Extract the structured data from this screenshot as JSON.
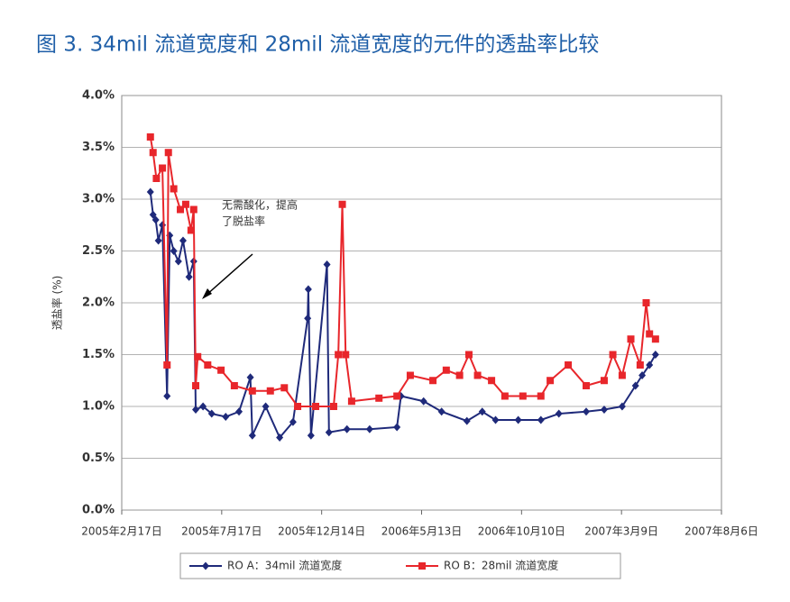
{
  "chart_data": {
    "type": "line",
    "title": "图 3. 34mil 流道宽度和 28mil 流道宽度的元件的透盐率比较",
    "ylabel": "透盐率 (%)",
    "annotation": [
      "无需酸化，提高",
      "了脱盐率"
    ],
    "xlim": [
      "2005-02-17",
      "2007-08-06"
    ],
    "xticks": [
      {
        "value": "2005-02-17",
        "label": "2005年2月17日"
      },
      {
        "value": "2005-07-17",
        "label": "2005年7月17日"
      },
      {
        "value": "2005-12-14",
        "label": "2005年12月14日"
      },
      {
        "value": "2006-05-13",
        "label": "2006年5月13日"
      },
      {
        "value": "2006-10-10",
        "label": "2006年10月10日"
      },
      {
        "value": "2007-03-09",
        "label": "2007年3月9日"
      },
      {
        "value": "2007-08-06",
        "label": "2007年8月6日"
      }
    ],
    "ylim": [
      0,
      4
    ],
    "yticks": [
      {
        "value": 0,
        "label": "0.0%"
      },
      {
        "value": 0.5,
        "label": "0.5%"
      },
      {
        "value": 1,
        "label": "1.0%"
      },
      {
        "value": 1.5,
        "label": "1.5%"
      },
      {
        "value": 2,
        "label": "2.0%"
      },
      {
        "value": 2.5,
        "label": "2.5%"
      },
      {
        "value": 3,
        "label": "3.0%"
      },
      {
        "value": 3.5,
        "label": "3.5%"
      },
      {
        "value": 4,
        "label": "4.0%"
      }
    ],
    "grid": true,
    "legend": "bottom",
    "series": [
      {
        "name": "RO A：34mil 流道宽度",
        "color": "#1f2a7a",
        "marker": "diamond",
        "x": [
          "2005-04-01",
          "2005-04-05",
          "2005-04-09",
          "2005-04-13",
          "2005-04-19",
          "2005-04-26",
          "2005-04-30",
          "2005-05-06",
          "2005-05-13",
          "2005-05-20",
          "2005-05-29",
          "2005-06-05",
          "2005-06-08",
          "2005-06-19",
          "2005-07-02",
          "2005-07-23",
          "2005-08-12",
          "2005-08-29",
          "2005-09-01",
          "2005-09-21",
          "2005-10-12",
          "2005-11-01",
          "2005-11-23",
          "2005-11-24",
          "2005-11-28",
          "2005-12-22",
          "2005-12-25",
          "2006-01-21",
          "2006-02-24",
          "2006-04-06",
          "2006-04-12",
          "2006-05-16",
          "2006-06-12",
          "2006-07-20",
          "2006-08-12",
          "2006-09-01",
          "2006-10-05",
          "2006-11-08",
          "2006-12-05",
          "2007-01-15",
          "2007-02-11",
          "2007-03-10",
          "2007-03-30",
          "2007-04-09",
          "2007-04-20",
          "2007-04-29"
        ],
        "values": [
          3.07,
          2.85,
          2.8,
          2.6,
          2.75,
          1.1,
          2.65,
          2.5,
          2.4,
          2.6,
          2.25,
          2.4,
          0.97,
          1.0,
          0.93,
          0.9,
          0.95,
          1.28,
          0.72,
          1.0,
          0.7,
          0.85,
          1.85,
          2.13,
          0.72,
          2.37,
          0.75,
          0.78,
          0.78,
          0.8,
          1.1,
          1.05,
          0.95,
          0.86,
          0.95,
          0.87,
          0.87,
          0.87,
          0.93,
          0.95,
          0.97,
          1.0,
          1.2,
          1.3,
          1.4,
          1.5
        ]
      },
      {
        "name": "RO B：28mil 流道宽度",
        "color": "#e8262b",
        "marker": "square",
        "x": [
          "2005-04-01",
          "2005-04-05",
          "2005-04-10",
          "2005-04-19",
          "2005-04-26",
          "2005-04-28",
          "2005-05-06",
          "2005-05-16",
          "2005-05-24",
          "2005-06-01",
          "2005-06-05",
          "2005-06-08",
          "2005-06-11",
          "2005-06-26",
          "2005-07-16",
          "2005-08-05",
          "2005-09-01",
          "2005-09-28",
          "2005-10-19",
          "2005-11-08",
          "2005-12-05",
          "2006-01-01",
          "2006-01-08",
          "2006-01-14",
          "2006-01-19",
          "2006-01-28",
          "2006-03-10",
          "2006-04-06",
          "2006-04-26",
          "2006-05-30",
          "2006-06-19",
          "2006-07-09",
          "2006-07-23",
          "2006-08-05",
          "2006-08-26",
          "2006-09-15",
          "2006-10-12",
          "2006-11-08",
          "2006-11-22",
          "2006-12-19",
          "2007-01-15",
          "2007-02-11",
          "2007-02-24",
          "2007-03-10",
          "2007-03-23",
          "2007-04-06",
          "2007-04-15",
          "2007-04-20",
          "2007-04-29"
        ],
        "values": [
          3.6,
          3.45,
          3.2,
          3.3,
          1.4,
          3.45,
          3.1,
          2.9,
          2.95,
          2.7,
          2.9,
          1.2,
          1.48,
          1.4,
          1.35,
          1.2,
          1.15,
          1.15,
          1.18,
          1.0,
          1.0,
          1.0,
          1.5,
          2.95,
          1.5,
          1.05,
          1.08,
          1.1,
          1.3,
          1.25,
          1.35,
          1.3,
          1.5,
          1.3,
          1.25,
          1.1,
          1.1,
          1.1,
          1.25,
          1.4,
          1.2,
          1.25,
          1.5,
          1.3,
          1.65,
          1.4,
          2.0,
          1.7,
          1.65
        ]
      }
    ]
  }
}
